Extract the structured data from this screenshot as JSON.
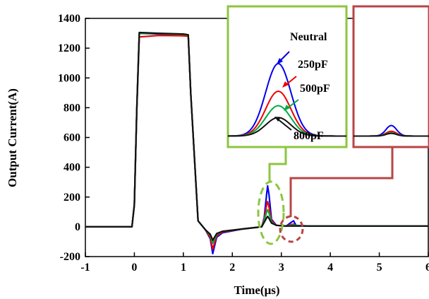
{
  "chart_data": {
    "type": "line",
    "xlabel": "Time(μs)",
    "ylabel": "Output Current(A)",
    "xlim": [
      -1,
      6
    ],
    "ylim": [
      -200,
      1400
    ],
    "xticks": [
      -1,
      0,
      1,
      2,
      3,
      4,
      5,
      6
    ],
    "yticks": [
      -200,
      0,
      200,
      400,
      600,
      800,
      1000,
      1200,
      1400
    ],
    "grid": false,
    "series": [
      {
        "name": "Neutral",
        "color": "#0000ee",
        "x": [
          -1,
          -0.05,
          0.0,
          0.05,
          0.1,
          0.5,
          1.0,
          1.1,
          1.15,
          1.3,
          1.45,
          1.55,
          1.6,
          1.68,
          1.8,
          2.2,
          2.6,
          2.65,
          2.7,
          2.72,
          2.75,
          2.8,
          2.9,
          3.1,
          3.2,
          3.25,
          3.3,
          3.6,
          6
        ],
        "y": [
          0,
          0,
          150,
          800,
          1300,
          1295,
          1290,
          1285,
          900,
          40,
          -20,
          -80,
          -180,
          -70,
          -40,
          -15,
          0,
          60,
          220,
          275,
          210,
          50,
          10,
          5,
          30,
          40,
          10,
          5,
          5
        ]
      },
      {
        "name": "250pF",
        "color": "#ee0000",
        "x": [
          -1,
          -0.05,
          0.0,
          0.05,
          0.1,
          0.5,
          1.0,
          1.1,
          1.15,
          1.3,
          1.45,
          1.55,
          1.6,
          1.68,
          1.8,
          2.2,
          2.6,
          2.65,
          2.7,
          2.72,
          2.75,
          2.8,
          2.9,
          3.1,
          3.2,
          3.25,
          3.3,
          3.6,
          6
        ],
        "y": [
          0,
          0,
          140,
          780,
          1275,
          1285,
          1283,
          1280,
          900,
          40,
          -20,
          -70,
          -150,
          -60,
          -35,
          -15,
          0,
          50,
          150,
          170,
          130,
          40,
          10,
          5,
          15,
          18,
          8,
          5,
          5
        ]
      },
      {
        "name": "500pF",
        "color": "#00aa44",
        "x": [
          -1,
          -0.05,
          0.0,
          0.05,
          0.1,
          0.5,
          1.0,
          1.1,
          1.15,
          1.3,
          1.45,
          1.55,
          1.6,
          1.68,
          1.8,
          2.2,
          2.6,
          2.65,
          2.7,
          2.72,
          2.75,
          2.8,
          2.9,
          3.1,
          3.2,
          3.25,
          3.3,
          3.6,
          6
        ],
        "y": [
          0,
          0,
          150,
          800,
          1300,
          1298,
          1292,
          1288,
          900,
          40,
          -20,
          -55,
          -110,
          -50,
          -30,
          -15,
          0,
          40,
          100,
          115,
          90,
          30,
          10,
          5,
          10,
          12,
          8,
          5,
          5
        ]
      },
      {
        "name": "800pF",
        "color": "#111111",
        "x": [
          -1,
          -0.05,
          0.0,
          0.05,
          0.1,
          0.5,
          1.0,
          1.1,
          1.15,
          1.3,
          1.45,
          1.55,
          1.6,
          1.68,
          1.8,
          2.2,
          2.6,
          2.65,
          2.7,
          2.72,
          2.75,
          2.8,
          2.9,
          3.1,
          3.2,
          3.25,
          3.3,
          3.6,
          6
        ],
        "y": [
          0,
          0,
          150,
          800,
          1305,
          1300,
          1295,
          1290,
          900,
          40,
          -20,
          -50,
          -90,
          -45,
          -30,
          -15,
          0,
          30,
          60,
          70,
          55,
          25,
          10,
          5,
          5,
          6,
          5,
          5,
          5
        ]
      }
    ],
    "annotations": {
      "neutral": "Neutral",
      "c250": "250pF",
      "c500": "500pF",
      "c800": "800pF"
    }
  }
}
